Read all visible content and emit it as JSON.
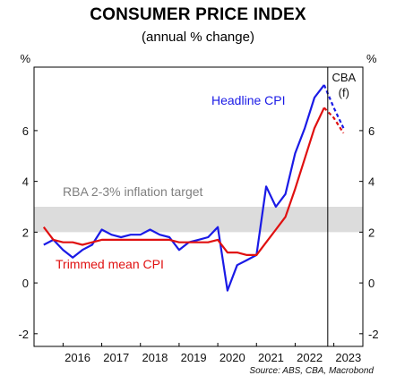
{
  "header": {
    "title": "CONSUMER PRICE INDEX",
    "subtitle": "(annual % change)"
  },
  "chart_data": {
    "type": "line",
    "title": "CONSUMER PRICE INDEX",
    "subtitle": "(annual % change)",
    "y_unit_left": "%",
    "y_unit_right": "%",
    "ylim": [
      -2.5,
      8.5
    ],
    "yticks": [
      -2,
      0,
      2,
      4,
      6
    ],
    "x_ticks": [
      "2016",
      "2017",
      "2018",
      "2019",
      "2020",
      "2021",
      "2022",
      "2023"
    ],
    "x_range": [
      "2015-Q2",
      "2023-Q4"
    ],
    "grid": false,
    "band": {
      "label": "RBA 2-3% inflation target",
      "from": 2,
      "to": 3,
      "color": "#dcdcdc"
    },
    "forecast_divider": {
      "label_line1": "CBA",
      "label_line2": "(f)",
      "at": "2022-Q4"
    },
    "source": "Source: ABS, CBA, Macrobond",
    "series": [
      {
        "name": "Headline CPI",
        "color": "#1a1ae6",
        "points": [
          [
            "2015-Q3",
            1.5
          ],
          [
            "2015-Q4",
            1.7
          ],
          [
            "2016-Q1",
            1.3
          ],
          [
            "2016-Q2",
            1.0
          ],
          [
            "2016-Q3",
            1.3
          ],
          [
            "2016-Q4",
            1.5
          ],
          [
            "2017-Q1",
            2.1
          ],
          [
            "2017-Q2",
            1.9
          ],
          [
            "2017-Q3",
            1.8
          ],
          [
            "2017-Q4",
            1.9
          ],
          [
            "2018-Q1",
            1.9
          ],
          [
            "2018-Q2",
            2.1
          ],
          [
            "2018-Q3",
            1.9
          ],
          [
            "2018-Q4",
            1.8
          ],
          [
            "2019-Q1",
            1.3
          ],
          [
            "2019-Q2",
            1.6
          ],
          [
            "2019-Q3",
            1.7
          ],
          [
            "2019-Q4",
            1.8
          ],
          [
            "2020-Q1",
            2.2
          ],
          [
            "2020-Q2",
            -0.3
          ],
          [
            "2020-Q3",
            0.7
          ],
          [
            "2020-Q4",
            0.9
          ],
          [
            "2021-Q1",
            1.1
          ],
          [
            "2021-Q2",
            3.8
          ],
          [
            "2021-Q3",
            3.0
          ],
          [
            "2021-Q4",
            3.5
          ],
          [
            "2022-Q1",
            5.1
          ],
          [
            "2022-Q2",
            6.1
          ],
          [
            "2022-Q3",
            7.3
          ],
          [
            "2022-Q4",
            7.8
          ]
        ]
      },
      {
        "name": "Trimmed mean CPI",
        "color": "#e01010",
        "points": [
          [
            "2015-Q3",
            2.2
          ],
          [
            "2015-Q4",
            1.7
          ],
          [
            "2016-Q1",
            1.6
          ],
          [
            "2016-Q2",
            1.6
          ],
          [
            "2016-Q3",
            1.5
          ],
          [
            "2016-Q4",
            1.6
          ],
          [
            "2017-Q1",
            1.7
          ],
          [
            "2017-Q2",
            1.7
          ],
          [
            "2017-Q3",
            1.7
          ],
          [
            "2017-Q4",
            1.7
          ],
          [
            "2018-Q1",
            1.7
          ],
          [
            "2018-Q2",
            1.7
          ],
          [
            "2018-Q3",
            1.7
          ],
          [
            "2018-Q4",
            1.7
          ],
          [
            "2019-Q1",
            1.6
          ],
          [
            "2019-Q2",
            1.6
          ],
          [
            "2019-Q3",
            1.6
          ],
          [
            "2019-Q4",
            1.6
          ],
          [
            "2020-Q1",
            1.7
          ],
          [
            "2020-Q2",
            1.2
          ],
          [
            "2020-Q3",
            1.2
          ],
          [
            "2020-Q4",
            1.1
          ],
          [
            "2021-Q1",
            1.1
          ],
          [
            "2021-Q2",
            1.6
          ],
          [
            "2021-Q3",
            2.1
          ],
          [
            "2021-Q4",
            2.6
          ],
          [
            "2022-Q1",
            3.7
          ],
          [
            "2022-Q2",
            4.9
          ],
          [
            "2022-Q3",
            6.1
          ],
          [
            "2022-Q4",
            6.9
          ]
        ]
      },
      {
        "name": "Headline CPI forecast",
        "color": "#1a1ae6",
        "dashed": true,
        "points": [
          [
            "2022-Q4",
            7.8
          ],
          [
            "2023-Q1",
            6.9
          ],
          [
            "2023-Q2",
            6.1
          ]
        ]
      },
      {
        "name": "Trimmed mean CPI forecast",
        "color": "#e01010",
        "dashed": true,
        "points": [
          [
            "2022-Q4",
            6.9
          ],
          [
            "2023-Q1",
            6.5
          ],
          [
            "2023-Q2",
            5.9
          ]
        ]
      }
    ]
  }
}
